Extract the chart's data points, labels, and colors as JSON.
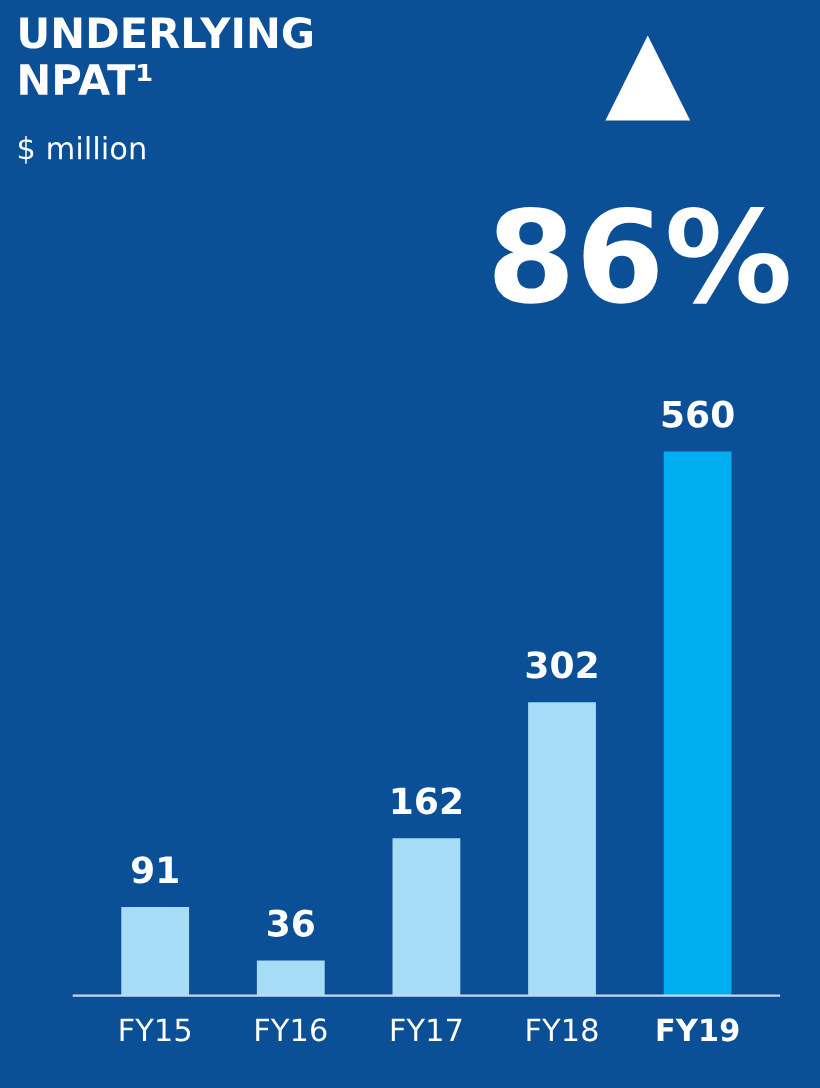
{
  "chart_data": {
    "type": "bar",
    "title": "UNDERLYING\nNPAT¹",
    "subtitle": "$ million",
    "annotations": [
      "▲",
      "86%"
    ],
    "categories": [
      "FY15",
      "FY16",
      "FY17",
      "FY18",
      "FY19"
    ],
    "values": [
      91,
      36,
      162,
      302,
      560
    ],
    "colors": [
      "#a6dcf6",
      "#a6dcf6",
      "#a6dcf6",
      "#a6dcf6",
      "#00aeef"
    ],
    "data_labels": true,
    "grid": false,
    "legend": false
  }
}
